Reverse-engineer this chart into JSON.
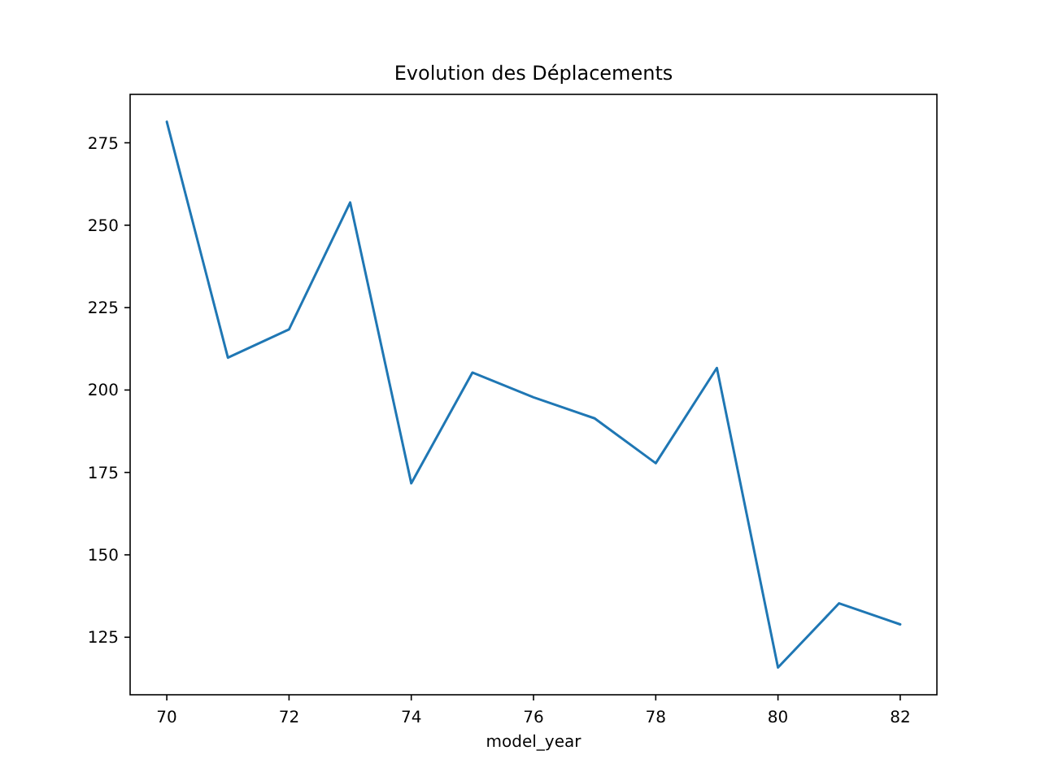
{
  "chart_data": {
    "type": "line",
    "title": "Evolution des Déplacements",
    "xlabel": "model_year",
    "x": [
      70,
      71,
      72,
      73,
      74,
      75,
      76,
      77,
      78,
      79,
      80,
      81,
      82
    ],
    "series": [
      {
        "color": "#1f77b4",
        "values": [
          281.4,
          209.8,
          218.4,
          256.9,
          171.7,
          205.3,
          197.8,
          191.4,
          177.8,
          206.7,
          115.8,
          135.3,
          128.9
        ]
      }
    ],
    "xlim": [
      69.4,
      82.6
    ],
    "ylim": [
      107.55,
      289.69
    ],
    "xticks": [
      70,
      72,
      74,
      76,
      78,
      80,
      82
    ],
    "yticks": [
      125,
      150,
      175,
      200,
      225,
      250,
      275
    ],
    "line_style": "solid"
  }
}
